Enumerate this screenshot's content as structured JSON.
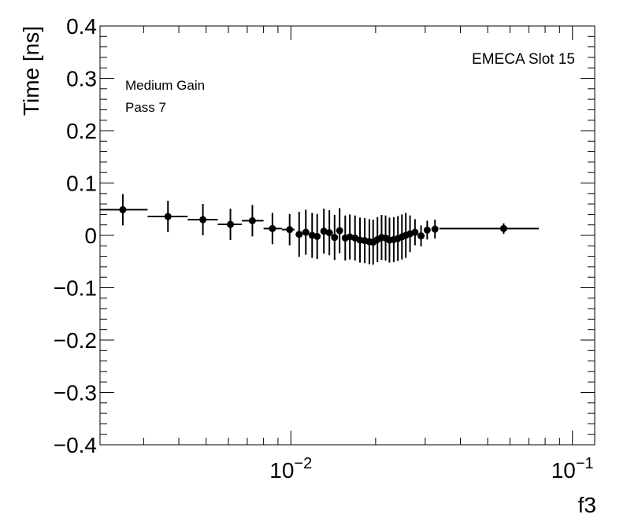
{
  "chart_data": {
    "type": "scatter",
    "xlabel": "f3",
    "ylabel": "Time [ns]",
    "xscale": "log",
    "xlim": [
      0.0021,
      0.12
    ],
    "ylim": [
      -0.4,
      0.4
    ],
    "grid": false,
    "y_ticks": [
      {
        "value": 0.4,
        "label": "0.4"
      },
      {
        "value": 0.3,
        "label": "0.3"
      },
      {
        "value": 0.2,
        "label": "0.2"
      },
      {
        "value": 0.1,
        "label": "0.1"
      },
      {
        "value": 0.0,
        "label": "0"
      },
      {
        "value": -0.1,
        "label": "−0.1"
      },
      {
        "value": -0.2,
        "label": "−0.2"
      },
      {
        "value": -0.3,
        "label": "−0.3"
      },
      {
        "value": -0.4,
        "label": "−0.4"
      }
    ],
    "x_ticks": [
      {
        "value": 0.01,
        "base": "10",
        "exp": "−2"
      },
      {
        "value": 0.1,
        "base": "10",
        "exp": "−1"
      }
    ],
    "annotations": {
      "top_right": "EMECA Slot 15",
      "line1": "Medium Gain",
      "line2": "Pass 7"
    },
    "points": [
      {
        "x": 0.00253,
        "y": 0.049,
        "xlo": 0.0021,
        "xhi": 0.0031,
        "err": 0.03
      },
      {
        "x": 0.00366,
        "y": 0.036,
        "xlo": 0.0031,
        "xhi": 0.0043,
        "err": 0.03
      },
      {
        "x": 0.00487,
        "y": 0.03,
        "xlo": 0.0043,
        "xhi": 0.0055,
        "err": 0.03
      },
      {
        "x": 0.0061,
        "y": 0.021,
        "xlo": 0.0055,
        "xhi": 0.0067,
        "err": 0.03
      },
      {
        "x": 0.0073,
        "y": 0.028,
        "xlo": 0.0067,
        "xhi": 0.008,
        "err": 0.03
      },
      {
        "x": 0.0086,
        "y": 0.013,
        "xlo": 0.008,
        "xhi": 0.0093,
        "err": 0.03
      },
      {
        "x": 0.0099,
        "y": 0.011,
        "xlo": 0.0093,
        "xhi": 0.0103,
        "err": 0.03
      },
      {
        "x": 0.0107,
        "y": 0.002,
        "xlo": 0.0104,
        "xhi": 0.011,
        "err": 0.043
      },
      {
        "x": 0.0113,
        "y": 0.006,
        "xlo": 0.0111,
        "xhi": 0.0116,
        "err": 0.043
      },
      {
        "x": 0.0119,
        "y": 0.0,
        "xlo": 0.0117,
        "xhi": 0.0121,
        "err": 0.043
      },
      {
        "x": 0.0124,
        "y": -0.002,
        "xlo": 0.0122,
        "xhi": 0.0126,
        "err": 0.043
      },
      {
        "x": 0.0131,
        "y": 0.008,
        "xlo": 0.0128,
        "xhi": 0.0134,
        "err": 0.043
      },
      {
        "x": 0.0137,
        "y": 0.005,
        "xlo": 0.0135,
        "xhi": 0.0139,
        "err": 0.043
      },
      {
        "x": 0.0143,
        "y": -0.004,
        "xlo": 0.014,
        "xhi": 0.0145,
        "err": 0.043
      },
      {
        "x": 0.0149,
        "y": 0.009,
        "xlo": 0.0147,
        "xhi": 0.0151,
        "err": 0.043
      },
      {
        "x": 0.0156,
        "y": -0.005,
        "xlo": 0.0153,
        "xhi": 0.0158,
        "err": 0.043
      },
      {
        "x": 0.0162,
        "y": -0.003,
        "xlo": 0.016,
        "xhi": 0.0164,
        "err": 0.043
      },
      {
        "x": 0.0169,
        "y": -0.005,
        "xlo": 0.0166,
        "xhi": 0.0171,
        "err": 0.043
      },
      {
        "x": 0.0176,
        "y": -0.009,
        "xlo": 0.0173,
        "xhi": 0.0178,
        "err": 0.043
      },
      {
        "x": 0.0183,
        "y": -0.01,
        "xlo": 0.018,
        "xhi": 0.0185,
        "err": 0.043
      },
      {
        "x": 0.019,
        "y": -0.012,
        "xlo": 0.0187,
        "xhi": 0.0192,
        "err": 0.043
      },
      {
        "x": 0.0196,
        "y": -0.013,
        "xlo": 0.0194,
        "xhi": 0.0198,
        "err": 0.043
      },
      {
        "x": 0.0203,
        "y": -0.008,
        "xlo": 0.02,
        "xhi": 0.0205,
        "err": 0.043
      },
      {
        "x": 0.021,
        "y": -0.004,
        "xlo": 0.0207,
        "xhi": 0.0212,
        "err": 0.043
      },
      {
        "x": 0.0217,
        "y": -0.005,
        "xlo": 0.0214,
        "xhi": 0.0219,
        "err": 0.043
      },
      {
        "x": 0.0224,
        "y": -0.009,
        "xlo": 0.0221,
        "xhi": 0.0226,
        "err": 0.043
      },
      {
        "x": 0.0232,
        "y": -0.008,
        "xlo": 0.0229,
        "xhi": 0.0234,
        "err": 0.043
      },
      {
        "x": 0.024,
        "y": -0.006,
        "xlo": 0.0237,
        "xhi": 0.0242,
        "err": 0.043
      },
      {
        "x": 0.0248,
        "y": -0.003,
        "xlo": 0.0245,
        "xhi": 0.025,
        "err": 0.043
      },
      {
        "x": 0.0256,
        "y": 0.0,
        "xlo": 0.0253,
        "xhi": 0.0258,
        "err": 0.043
      },
      {
        "x": 0.0265,
        "y": 0.003,
        "xlo": 0.0261,
        "xhi": 0.0268,
        "err": 0.035
      },
      {
        "x": 0.0276,
        "y": 0.006,
        "xlo": 0.0271,
        "xhi": 0.028,
        "err": 0.025
      },
      {
        "x": 0.029,
        "y": -0.001,
        "xlo": 0.0284,
        "xhi": 0.0295,
        "err": 0.02
      },
      {
        "x": 0.0305,
        "y": 0.01,
        "xlo": 0.0298,
        "xhi": 0.0312,
        "err": 0.018
      },
      {
        "x": 0.0325,
        "y": 0.012,
        "xlo": 0.0316,
        "xhi": 0.0333,
        "err": 0.018
      },
      {
        "x": 0.057,
        "y": 0.013,
        "xlo": 0.0337,
        "xhi": 0.076,
        "err": 0.01
      }
    ]
  }
}
